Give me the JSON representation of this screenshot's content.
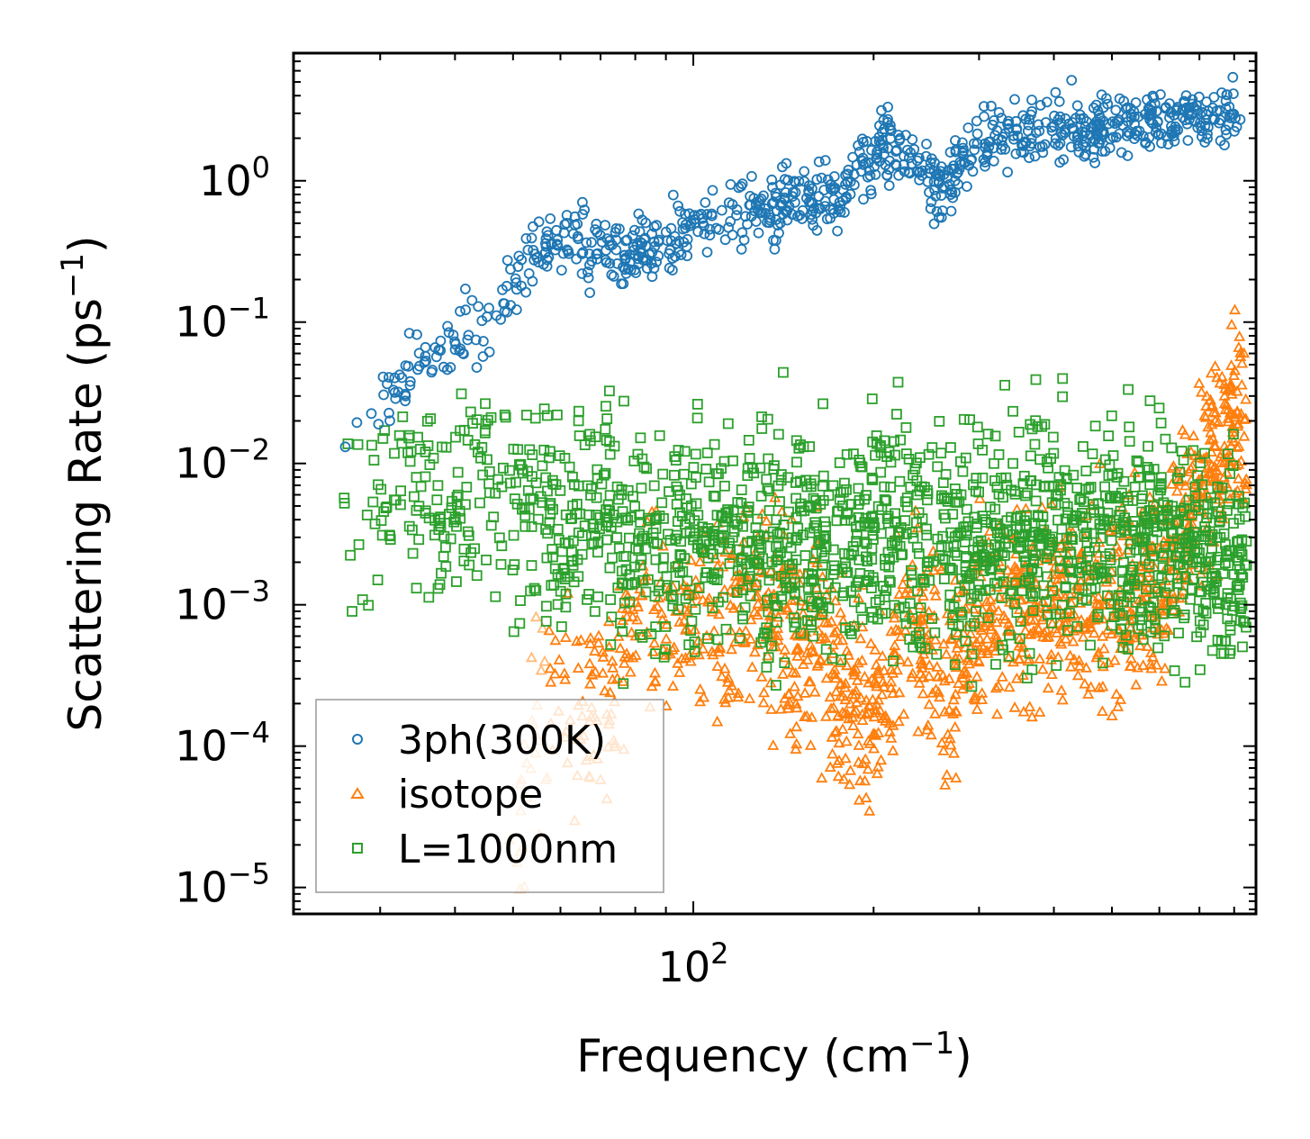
{
  "chart_data": {
    "type": "scatter",
    "title": "",
    "xlabel": "Frequency (cm",
    "xlabel_sup": "−1",
    "xlabel_end": ")",
    "ylabel": "Scattering Rate (ps",
    "ylabel_sup": "−1",
    "ylabel_end": ")",
    "xscale": "log",
    "yscale": "log",
    "xlim": [
      21.5,
      870
    ],
    "ylim": [
      6.5e-06,
      8.0
    ],
    "x_tick_labels": [
      {
        "value": 100,
        "base": "10",
        "exp": "2"
      }
    ],
    "y_tick_labels": [
      {
        "value": 1,
        "base": "10",
        "exp": "0"
      },
      {
        "value": 0.1,
        "base": "10",
        "exp": "−1"
      },
      {
        "value": 0.01,
        "base": "10",
        "exp": "−2"
      },
      {
        "value": 0.001,
        "base": "10",
        "exp": "−3"
      },
      {
        "value": 0.0001,
        "base": "10",
        "exp": "−4"
      },
      {
        "value": 1e-05,
        "base": "10",
        "exp": "−5"
      }
    ],
    "legend_position": "lower-left",
    "series": [
      {
        "name": "3ph(300K)",
        "marker": "circle",
        "color": "#1f77b4",
        "trend": [
          [
            26,
            0.017
          ],
          [
            28,
            0.019
          ],
          [
            30,
            0.028
          ],
          [
            34,
            0.045
          ],
          [
            38,
            0.055
          ],
          [
            42,
            0.08
          ],
          [
            46,
            0.12
          ],
          [
            50,
            0.2
          ],
          [
            55,
            0.3
          ],
          [
            60,
            0.35
          ],
          [
            65,
            0.38
          ],
          [
            70,
            0.3
          ],
          [
            75,
            0.28
          ],
          [
            80,
            0.32
          ],
          [
            90,
            0.38
          ],
          [
            100,
            0.5
          ],
          [
            110,
            0.55
          ],
          [
            120,
            0.6
          ],
          [
            130,
            0.55
          ],
          [
            140,
            0.7
          ],
          [
            150,
            0.9
          ],
          [
            160,
            0.8
          ],
          [
            175,
            0.75
          ],
          [
            190,
            1.3
          ],
          [
            210,
            1.8
          ],
          [
            230,
            1.5
          ],
          [
            250,
            1.0
          ],
          [
            265,
            0.9
          ],
          [
            280,
            1.5
          ],
          [
            300,
            1.8
          ],
          [
            350,
            2.2
          ],
          [
            400,
            2.3
          ],
          [
            450,
            2.2
          ],
          [
            500,
            2.4
          ],
          [
            550,
            2.5
          ],
          [
            600,
            2.6
          ],
          [
            650,
            2.7
          ],
          [
            700,
            2.8
          ],
          [
            760,
            2.8
          ],
          [
            820,
            3.0
          ]
        ],
        "log_spread": 0.12
      },
      {
        "name": "isotope",
        "marker": "triangle",
        "color": "#ff7f0e",
        "trend": [
          [
            49,
            1.2e-05
          ],
          [
            51,
            3e-05
          ],
          [
            53,
            8e-05
          ],
          [
            55,
            0.00015
          ],
          [
            57,
            0.0002
          ],
          [
            60,
            0.00018
          ],
          [
            65,
            0.00015
          ],
          [
            70,
            0.0002
          ],
          [
            75,
            0.0004
          ],
          [
            80,
            0.0008
          ],
          [
            90,
            0.0009
          ],
          [
            100,
            0.0007
          ],
          [
            110,
            0.0005
          ],
          [
            120,
            0.0009
          ],
          [
            140,
            0.0008
          ],
          [
            160,
            0.0005
          ],
          [
            180,
            0.00025
          ],
          [
            195,
            0.00015
          ],
          [
            210,
            0.0003
          ],
          [
            230,
            0.0007
          ],
          [
            250,
            0.0005
          ],
          [
            265,
            0.0002
          ],
          [
            275,
            0.0004
          ],
          [
            300,
            0.0008
          ],
          [
            350,
            0.0009
          ],
          [
            400,
            0.001
          ],
          [
            450,
            0.001
          ],
          [
            500,
            0.0012
          ],
          [
            600,
            0.0015
          ],
          [
            650,
            0.004
          ],
          [
            700,
            0.008
          ],
          [
            750,
            0.012
          ],
          [
            800,
            0.02
          ],
          [
            840,
            0.015
          ]
        ],
        "log_spread": 0.35
      },
      {
        "name": "L=1000nm",
        "marker": "square",
        "color": "#2ca02c",
        "trend": [
          [
            26,
            0.006
          ],
          [
            28,
            0.0055
          ],
          [
            30,
            0.006
          ],
          [
            34,
            0.0058
          ],
          [
            38,
            0.0055
          ],
          [
            42,
            0.0055
          ],
          [
            46,
            0.006
          ],
          [
            50,
            0.0052
          ],
          [
            55,
            0.0045
          ],
          [
            58,
            0.0035
          ],
          [
            61,
            0.0025
          ],
          [
            64,
            0.004
          ],
          [
            68,
            0.005
          ],
          [
            72,
            0.0045
          ],
          [
            76,
            0.003
          ],
          [
            80,
            0.0025
          ],
          [
            90,
            0.003
          ],
          [
            100,
            0.0028
          ],
          [
            120,
            0.0028
          ],
          [
            150,
            0.003
          ],
          [
            200,
            0.003
          ],
          [
            250,
            0.0028
          ],
          [
            300,
            0.003
          ],
          [
            400,
            0.003
          ],
          [
            500,
            0.0028
          ],
          [
            600,
            0.003
          ],
          [
            700,
            0.0025
          ],
          [
            800,
            0.002
          ],
          [
            840,
            0.0018
          ]
        ],
        "log_spread": 0.4
      }
    ]
  }
}
